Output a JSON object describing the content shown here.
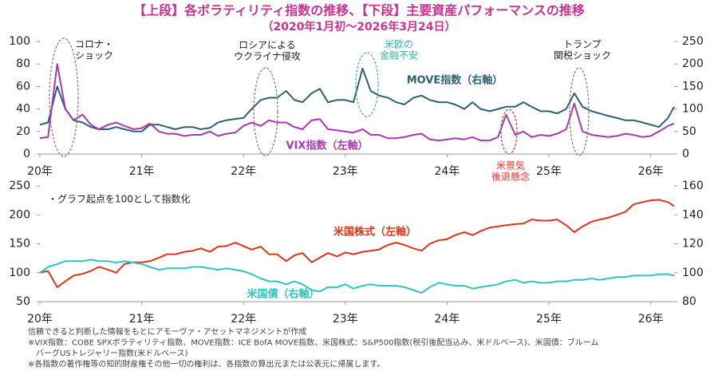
{
  "title": "【上段】各ボラティリティ指数の推移、【下段】主要資産パフォーマンスの推移",
  "subtitle": "（2020年1月初～2026年3月24日）",
  "chart_data": [
    {
      "type": "line",
      "x": [
        2020.0,
        2020.08,
        2020.17,
        2020.25,
        2020.33,
        2020.42,
        2020.5,
        2020.58,
        2020.67,
        2020.75,
        2020.83,
        2020.92,
        2021.0,
        2021.08,
        2021.17,
        2021.25,
        2021.33,
        2021.42,
        2021.5,
        2021.58,
        2021.67,
        2021.75,
        2021.83,
        2021.92,
        2022.0,
        2022.08,
        2022.17,
        2022.25,
        2022.33,
        2022.42,
        2022.5,
        2022.58,
        2022.67,
        2022.75,
        2022.83,
        2022.92,
        2023.0,
        2023.08,
        2023.17,
        2023.25,
        2023.33,
        2023.42,
        2023.5,
        2023.58,
        2023.67,
        2023.75,
        2023.83,
        2023.92,
        2024.0,
        2024.08,
        2024.17,
        2024.25,
        2024.33,
        2024.42,
        2024.5,
        2024.58,
        2024.67,
        2024.75,
        2024.83,
        2024.92,
        2025.0,
        2025.08,
        2025.17,
        2025.25,
        2025.33,
        2025.42,
        2025.5,
        2025.58,
        2025.67,
        2025.75,
        2025.83,
        2025.92,
        2026.0,
        2026.08,
        2026.17,
        2026.23
      ],
      "xlim": [
        2020,
        2026.23
      ],
      "xticks": [
        {
          "value": 2020,
          "label": "20年"
        },
        {
          "value": 2021,
          "label": "21年"
        },
        {
          "value": 2022,
          "label": "22年"
        },
        {
          "value": 2023,
          "label": "23年"
        },
        {
          "value": 2024,
          "label": "24年"
        },
        {
          "value": 2025,
          "label": "25年"
        },
        {
          "value": 2026,
          "label": "26年"
        }
      ],
      "ylim": [
        0,
        100
      ],
      "yticks": [
        0,
        20,
        40,
        60,
        80,
        100
      ],
      "y2lim": [
        0,
        250
      ],
      "y2ticks": [
        0,
        50,
        100,
        150,
        200,
        250
      ],
      "series": [
        {
          "name": "MOVE指数（右軸）",
          "color": "#2e5f73",
          "axis": "y2",
          "values": [
            65,
            70,
            150,
            100,
            75,
            70,
            60,
            55,
            55,
            60,
            55,
            50,
            50,
            65,
            65,
            60,
            55,
            60,
            60,
            55,
            58,
            70,
            75,
            78,
            80,
            100,
            120,
            125,
            125,
            140,
            120,
            115,
            135,
            145,
            115,
            120,
            120,
            115,
            190,
            140,
            130,
            125,
            115,
            110,
            125,
            130,
            120,
            115,
            115,
            110,
            100,
            115,
            100,
            95,
            100,
            105,
            105,
            115,
            105,
            95,
            95,
            90,
            100,
            135,
            105,
            95,
            90,
            85,
            80,
            75,
            75,
            70,
            65,
            60,
            80,
            105
          ]
        },
        {
          "name": "VIX指数（左軸）",
          "color": "#a43bb0",
          "values": [
            14,
            15,
            80,
            40,
            30,
            35,
            26,
            22,
            26,
            28,
            25,
            22,
            23,
            27,
            20,
            18,
            18,
            16,
            17,
            17,
            20,
            16,
            18,
            19,
            25,
            28,
            25,
            30,
            28,
            28,
            24,
            22,
            30,
            31,
            22,
            21,
            20,
            19,
            22,
            17,
            17,
            14,
            14,
            15,
            17,
            18,
            13,
            12,
            13,
            14,
            13,
            15,
            12,
            12,
            15,
            35,
            17,
            20,
            15,
            17,
            16,
            18,
            22,
            45,
            20,
            17,
            16,
            15,
            16,
            18,
            17,
            15,
            16,
            20,
            25,
            27
          ]
        }
      ],
      "annotations": [
        {
          "lines": [
            "コロナ・",
            "ショック"
          ],
          "color": "#222222"
        },
        {
          "lines": [
            "ロシアによる",
            "ウクライナ侵攻"
          ],
          "color": "#222222"
        },
        {
          "lines": [
            "米欧の",
            "金融不安"
          ],
          "color": "#2fb5a8"
        },
        {
          "lines": [
            "トランプ",
            "関税ショック"
          ],
          "color": "#222222"
        },
        {
          "lines": [
            "米景気",
            "後退懸念"
          ],
          "color": "#e0302a"
        }
      ]
    },
    {
      "type": "line",
      "x": [
        2020.0,
        2020.08,
        2020.17,
        2020.25,
        2020.33,
        2020.42,
        2020.5,
        2020.58,
        2020.67,
        2020.75,
        2020.83,
        2020.92,
        2021.0,
        2021.08,
        2021.17,
        2021.25,
        2021.33,
        2021.42,
        2021.5,
        2021.58,
        2021.67,
        2021.75,
        2021.83,
        2021.92,
        2022.0,
        2022.08,
        2022.17,
        2022.25,
        2022.33,
        2022.42,
        2022.5,
        2022.58,
        2022.67,
        2022.75,
        2022.83,
        2022.92,
        2023.0,
        2023.08,
        2023.17,
        2023.25,
        2023.33,
        2023.42,
        2023.5,
        2023.58,
        2023.67,
        2023.75,
        2023.83,
        2023.92,
        2024.0,
        2024.08,
        2024.17,
        2024.25,
        2024.33,
        2024.42,
        2024.5,
        2024.58,
        2024.67,
        2024.75,
        2024.83,
        2024.92,
        2025.0,
        2025.08,
        2025.17,
        2025.25,
        2025.33,
        2025.42,
        2025.5,
        2025.58,
        2025.67,
        2025.75,
        2025.83,
        2025.92,
        2026.0,
        2026.08,
        2026.17,
        2026.23
      ],
      "xlim": [
        2020,
        2026.23
      ],
      "xticks": [
        {
          "value": 2020,
          "label": "20年"
        },
        {
          "value": 2021,
          "label": "21年"
        },
        {
          "value": 2022,
          "label": "22年"
        },
        {
          "value": 2023,
          "label": "23年"
        },
        {
          "value": 2024,
          "label": "24年"
        },
        {
          "value": 2025,
          "label": "25年"
        },
        {
          "value": 2026,
          "label": "26年"
        }
      ],
      "ylim": [
        50,
        250
      ],
      "yticks": [
        50,
        100,
        150,
        200,
        250
      ],
      "y2lim": [
        80,
        160
      ],
      "y2ticks": [
        80,
        100,
        120,
        140,
        160
      ],
      "series": [
        {
          "name": "米国株式（左軸）",
          "color": "#d9371c",
          "values": [
            100,
            103,
            75,
            85,
            95,
            98,
            103,
            110,
            105,
            100,
            115,
            118,
            118,
            120,
            126,
            132,
            132,
            136,
            138,
            142,
            136,
            145,
            146,
            152,
            146,
            140,
            145,
            132,
            132,
            120,
            130,
            134,
            118,
            126,
            134,
            128,
            135,
            132,
            136,
            138,
            140,
            148,
            152,
            148,
            142,
            138,
            150,
            156,
            158,
            165,
            170,
            165,
            172,
            178,
            180,
            182,
            184,
            185,
            192,
            190,
            190,
            192,
            182,
            170,
            180,
            188,
            192,
            195,
            200,
            205,
            218,
            222,
            225,
            226,
            222,
            215
          ]
        },
        {
          "name": "米国債（右軸）",
          "color": "#2fc6b8",
          "axis": "y2",
          "values": [
            100,
            104,
            106,
            108,
            108,
            108,
            109,
            108,
            108,
            107,
            108,
            107,
            106,
            104,
            102,
            103,
            103,
            103,
            104,
            104,
            103,
            102,
            103,
            102,
            101,
            99,
            96,
            94,
            94,
            92,
            94,
            92,
            88,
            87,
            90,
            90,
            92,
            89,
            91,
            92,
            91,
            91,
            91,
            90,
            88,
            86,
            90,
            93,
            92,
            91,
            91,
            89,
            90,
            91,
            92,
            94,
            95,
            93,
            94,
            93,
            93,
            94,
            94,
            95,
            95,
            96,
            95,
            96,
            97,
            97,
            98,
            98,
            98,
            99,
            99,
            98
          ]
        }
      ],
      "note": "・グラフ起点を100として指数化"
    }
  ],
  "notes": [
    "信頼できると判断した情報をもとにアモーヴァ・アセットマネジメントが作成",
    "※VIX指数：COBE SPXボラティリティ指数、MOVE指数：ICE BofA MOVE指数、米国株式：S&P500指数(税引後配当込み、米ドルベース)、米国債：ブルーム",
    "　バーグUSトレジャリー指数(米ドルベース)",
    "※各指数の著作権等の知的財産権その他一切の権利は、各指数の算出元または公表元に帰属します。"
  ]
}
